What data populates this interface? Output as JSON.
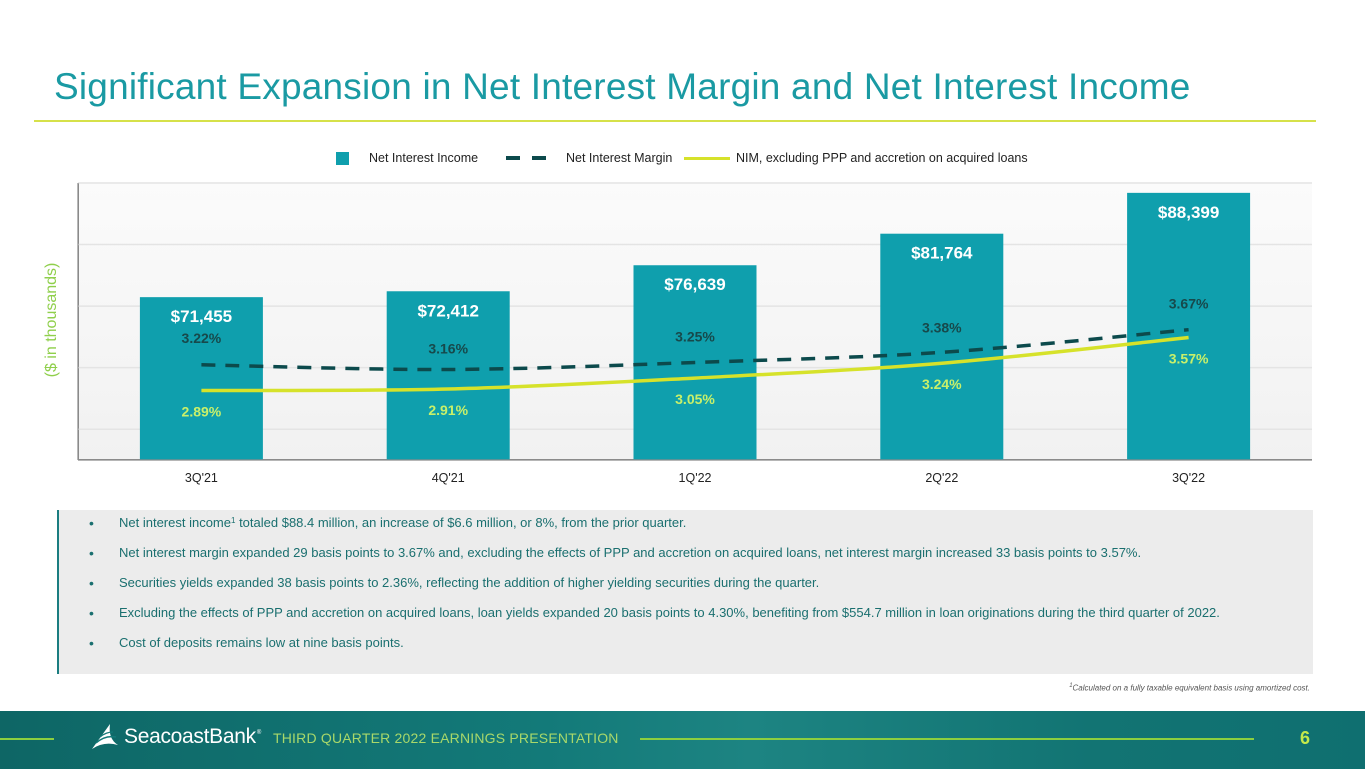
{
  "page": {
    "title": "Significant Expansion in Net Interest Margin and Net Interest Income",
    "footer_caption": "THIRD QUARTER 2022 EARNINGS PRESENTATION",
    "brand": "SeacoastBank",
    "brand_tm": "®",
    "page_number": "6",
    "footnote_mark": "1",
    "footnote": "Calculated on a fully taxable equivalent basis using amortized cost."
  },
  "colors": {
    "accent_teal": "#0f9fad",
    "title_teal": "#1a9aa3",
    "nim_dash": "#0c4a4c",
    "nim_excl_line": "#d6e22a",
    "nim_excl_label": "#c8f06a",
    "ylabel_green": "#8fcf4b",
    "rule_yellow": "#d6e14a"
  },
  "bullets": [
    {
      "pre": "Net interest income",
      "sup": "1",
      "post": " totaled $88.4 million, an increase of $6.6 million, or 8%, from the prior quarter."
    },
    {
      "pre": "Net interest margin expanded 29 basis points to 3.67% and, excluding the effects of PPP and accretion on acquired loans, net interest margin increased 33 basis points to 3.57%.",
      "sup": "",
      "post": ""
    },
    {
      "pre": "Securities yields expanded 38 basis points to 2.36%, reflecting the addition of higher yielding securities during the quarter.",
      "sup": "",
      "post": ""
    },
    {
      "pre": "Excluding the effects of PPP and accretion on acquired loans, loan yields expanded 20 basis points to 4.30%, benefiting from $554.7 million in loan originations during the third quarter of 2022.",
      "sup": "",
      "post": ""
    },
    {
      "pre": "Cost of deposits remains low at nine basis points.",
      "sup": "",
      "post": ""
    }
  ],
  "chart_data": {
    "type": "bar",
    "title": "",
    "xlabel": "",
    "ylabel": "($ in thousands)",
    "categories": [
      "3Q'21",
      "4Q'21",
      "1Q'22",
      "2Q'22",
      "3Q'22"
    ],
    "ylim": [
      45000,
      90000
    ],
    "y_gridlines": [
      50000,
      60000,
      70000,
      80000,
      90000
    ],
    "y2lim": [
      2.0,
      5.55
    ],
    "grid": true,
    "legend_position": "top-center",
    "legend": [
      "Net Interest Income",
      "Net Interest Margin",
      "NIM, excluding PPP and accretion on acquired loans"
    ],
    "series": [
      {
        "name": "Net Interest Income",
        "type": "bar",
        "axis": "primary",
        "values": [
          71455,
          72412,
          76639,
          81764,
          88399
        ],
        "labels": [
          "$71,455",
          "$72,412",
          "$76,639",
          "$81,764",
          "$88,399"
        ]
      },
      {
        "name": "Net Interest Margin",
        "type": "line",
        "style": "dashed",
        "axis": "secondary",
        "values": [
          3.22,
          3.16,
          3.25,
          3.38,
          3.67
        ],
        "labels": [
          "3.22%",
          "3.16%",
          "3.25%",
          "3.38%",
          "3.67%"
        ]
      },
      {
        "name": "NIM, excluding PPP and accretion on acquired loans",
        "type": "line",
        "style": "solid",
        "axis": "secondary",
        "values": [
          2.89,
          2.91,
          3.05,
          3.24,
          3.57
        ],
        "labels": [
          "2.89%",
          "2.91%",
          "3.05%",
          "3.24%",
          "3.57%"
        ]
      }
    ]
  }
}
